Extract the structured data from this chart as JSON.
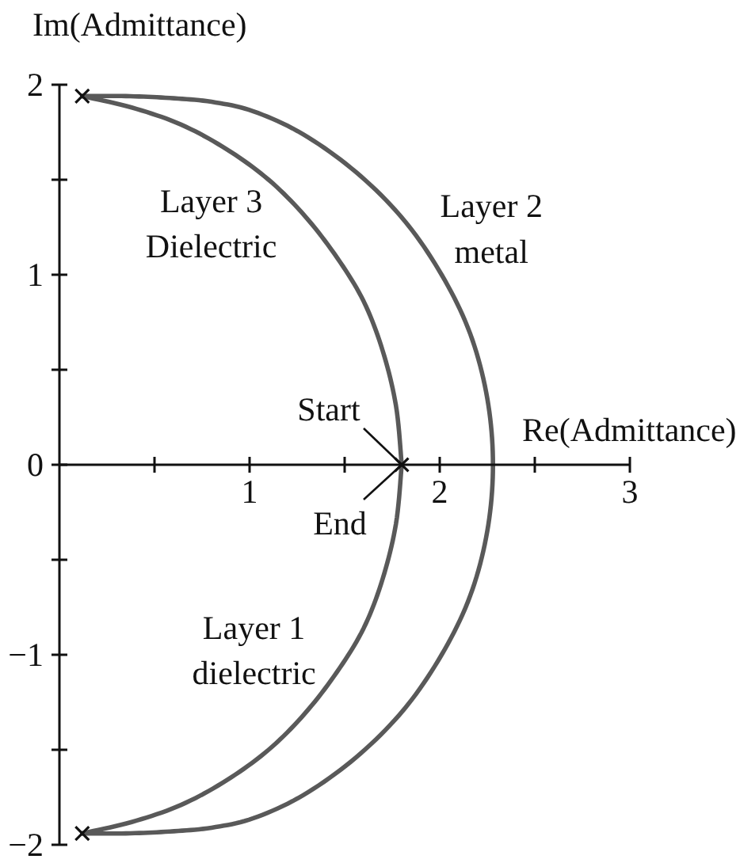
{
  "chart_data": {
    "type": "line",
    "xlabel": "Re(Admittance)",
    "ylabel": "Im(Admittance)",
    "xlim": [
      0,
      3
    ],
    "ylim": [
      -2,
      2
    ],
    "xticks": [
      {
        "value": 0.5,
        "label": null
      },
      1,
      {
        "value": 1.5,
        "label": null
      },
      2,
      {
        "value": 2.5,
        "label": null
      },
      3
    ],
    "yticks": [
      {
        "value": -2,
        "label": "−2"
      },
      {
        "value": -1.5,
        "label": null
      },
      {
        "value": -1,
        "label": "−1"
      },
      {
        "value": -0.5,
        "label": null
      },
      0,
      {
        "value": 0.5,
        "label": null
      },
      1,
      {
        "value": 1.5,
        "label": null
      },
      2
    ],
    "series": [
      {
        "name": "Layer 1\ndielectric",
        "color": "#595959",
        "x": [
          1.8,
          1.77,
          1.7,
          1.6,
          1.46,
          1.29,
          1.1,
          0.88,
          0.64,
          0.38,
          0.12
        ],
        "values": [
          0,
          -0.31,
          -0.6,
          -0.86,
          -1.09,
          -1.31,
          -1.5,
          -1.66,
          -1.79,
          -1.88,
          -1.94
        ]
      },
      {
        "name": "Layer 2\nmetal",
        "color": "#595959",
        "x": [
          0.12,
          0.35,
          0.58,
          0.8,
          1.02,
          1.28,
          1.56,
          1.81,
          2.01,
          2.16,
          2.25,
          2.28,
          2.25,
          2.16,
          2.01,
          1.81,
          1.56,
          1.28,
          1.02,
          0.8,
          0.58,
          0.35,
          0.12
        ],
        "values": [
          -1.94,
          -1.94,
          -1.93,
          -1.91,
          -1.86,
          -1.74,
          -1.54,
          -1.29,
          -1.0,
          -0.69,
          -0.35,
          0,
          0.35,
          0.69,
          1.0,
          1.29,
          1.54,
          1.74,
          1.86,
          1.91,
          1.93,
          1.94,
          1.94
        ]
      },
      {
        "name": "Layer 3\nDielectric",
        "color": "#595959",
        "x": [
          0.12,
          0.38,
          0.64,
          0.88,
          1.1,
          1.29,
          1.46,
          1.6,
          1.7,
          1.77,
          1.8
        ],
        "values": [
          1.94,
          1.88,
          1.79,
          1.66,
          1.5,
          1.31,
          1.09,
          0.86,
          0.6,
          0.31,
          0
        ]
      },
      {
        "type": "scatter",
        "marker": "cross",
        "color": "#111111",
        "x": [
          0.12,
          0.12,
          1.8
        ],
        "values": [
          1.94,
          -1.94,
          0
        ]
      }
    ],
    "annotations": [
      {
        "text": "Start",
        "x": 1.8,
        "y": 0
      },
      {
        "text": "End",
        "x": 1.8,
        "y": 0
      }
    ]
  }
}
